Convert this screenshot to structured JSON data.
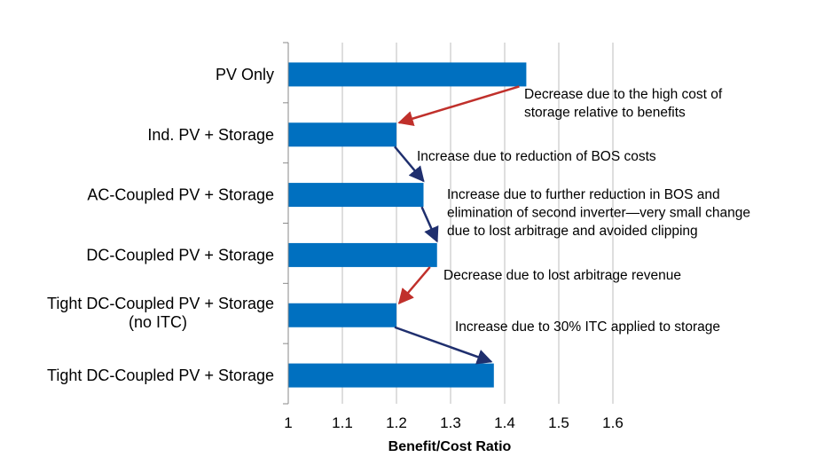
{
  "chart_data": {
    "type": "bar",
    "orientation": "horizontal",
    "categories": [
      [
        "PV Only"
      ],
      [
        "Ind. PV + Storage"
      ],
      [
        "AC-Coupled PV + Storage"
      ],
      [
        "DC-Coupled PV + Storage"
      ],
      [
        "Tight DC-Coupled PV + Storage",
        "(no ITC)"
      ],
      [
        "Tight DC-Coupled PV + Storage"
      ]
    ],
    "values": [
      1.44,
      1.2,
      1.25,
      1.275,
      1.2,
      1.38
    ],
    "xlim": [
      1,
      1.6
    ],
    "xticks": [
      "1",
      "1.1",
      "1.2",
      "1.3",
      "1.4",
      "1.5",
      "1.6"
    ],
    "xlabel": "Benefit/Cost Ratio",
    "grid": "vertical",
    "colors": {
      "bar": "#0070c0",
      "decrease_arrow": "#c0302b",
      "increase_arrow": "#1f2f6e"
    },
    "annotations": [
      {
        "from_bar": 0,
        "to_bar": 1,
        "direction": "decrease",
        "text": [
          "Decrease due to the high cost of",
          "storage relative to benefits"
        ]
      },
      {
        "from_bar": 1,
        "to_bar": 2,
        "direction": "increase",
        "text": [
          "Increase due to reduction of BOS costs"
        ]
      },
      {
        "from_bar": 2,
        "to_bar": 3,
        "direction": "increase",
        "text": [
          "Increase due to further reduction in BOS and",
          "elimination of second inverter—very small change",
          "due to lost arbitrage and avoided clipping"
        ]
      },
      {
        "from_bar": 3,
        "to_bar": 4,
        "direction": "decrease",
        "text": [
          "Decrease due to lost arbitrage revenue"
        ]
      },
      {
        "from_bar": 4,
        "to_bar": 5,
        "direction": "increase",
        "text": [
          "Increase due to 30% ITC applied to storage"
        ]
      }
    ]
  }
}
